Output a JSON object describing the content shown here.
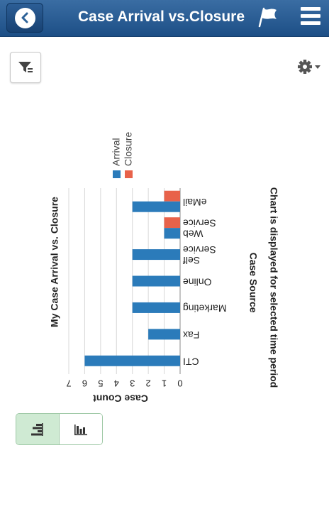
{
  "header": {
    "title": "Case Arrival vs.Closure"
  },
  "colors": {
    "header": "#24578f",
    "arrival": "#2b7bba",
    "closure": "#e8624a",
    "toggle_active": "#cfead3"
  },
  "icons": {
    "back": "back-arrow-icon",
    "flag": "flag-icon",
    "menu": "hamburger-menu-icon",
    "filter": "filter-icon",
    "gear": "gear-icon",
    "horizontal_bar_view": "horizontal-bar-chart-icon",
    "vertical_bar_view": "vertical-bar-chart-icon"
  },
  "chart_footnote": "Chart is displayed for selected time period",
  "chart_data": {
    "type": "bar",
    "orientation": "horizontal",
    "rendered_rotation": "180deg",
    "title": "My Case Arrival vs. Closure",
    "xlabel": "Case Count",
    "ylabel": "Case Source",
    "xlim": [
      0,
      7
    ],
    "ticks": [
      "0",
      "1",
      "2",
      "3",
      "4",
      "5",
      "6",
      "7"
    ],
    "categories": [
      "CTI",
      "Fax",
      "Marketing",
      "Online",
      "Self Service",
      "Web Service",
      "eMail"
    ],
    "category_lines": [
      [
        "CTI"
      ],
      [
        "Fax"
      ],
      [
        "Marketing"
      ],
      [
        "Online"
      ],
      [
        "Self",
        "Service"
      ],
      [
        "Web",
        "Service"
      ],
      [
        "eMail"
      ]
    ],
    "series": [
      {
        "name": "Arrival",
        "values": [
          6,
          2,
          3,
          3,
          3,
          1,
          3
        ]
      },
      {
        "name": "Closure",
        "values": [
          0,
          0,
          0,
          0,
          0,
          1,
          1
        ]
      }
    ],
    "grid": true,
    "legend_position": "top"
  }
}
